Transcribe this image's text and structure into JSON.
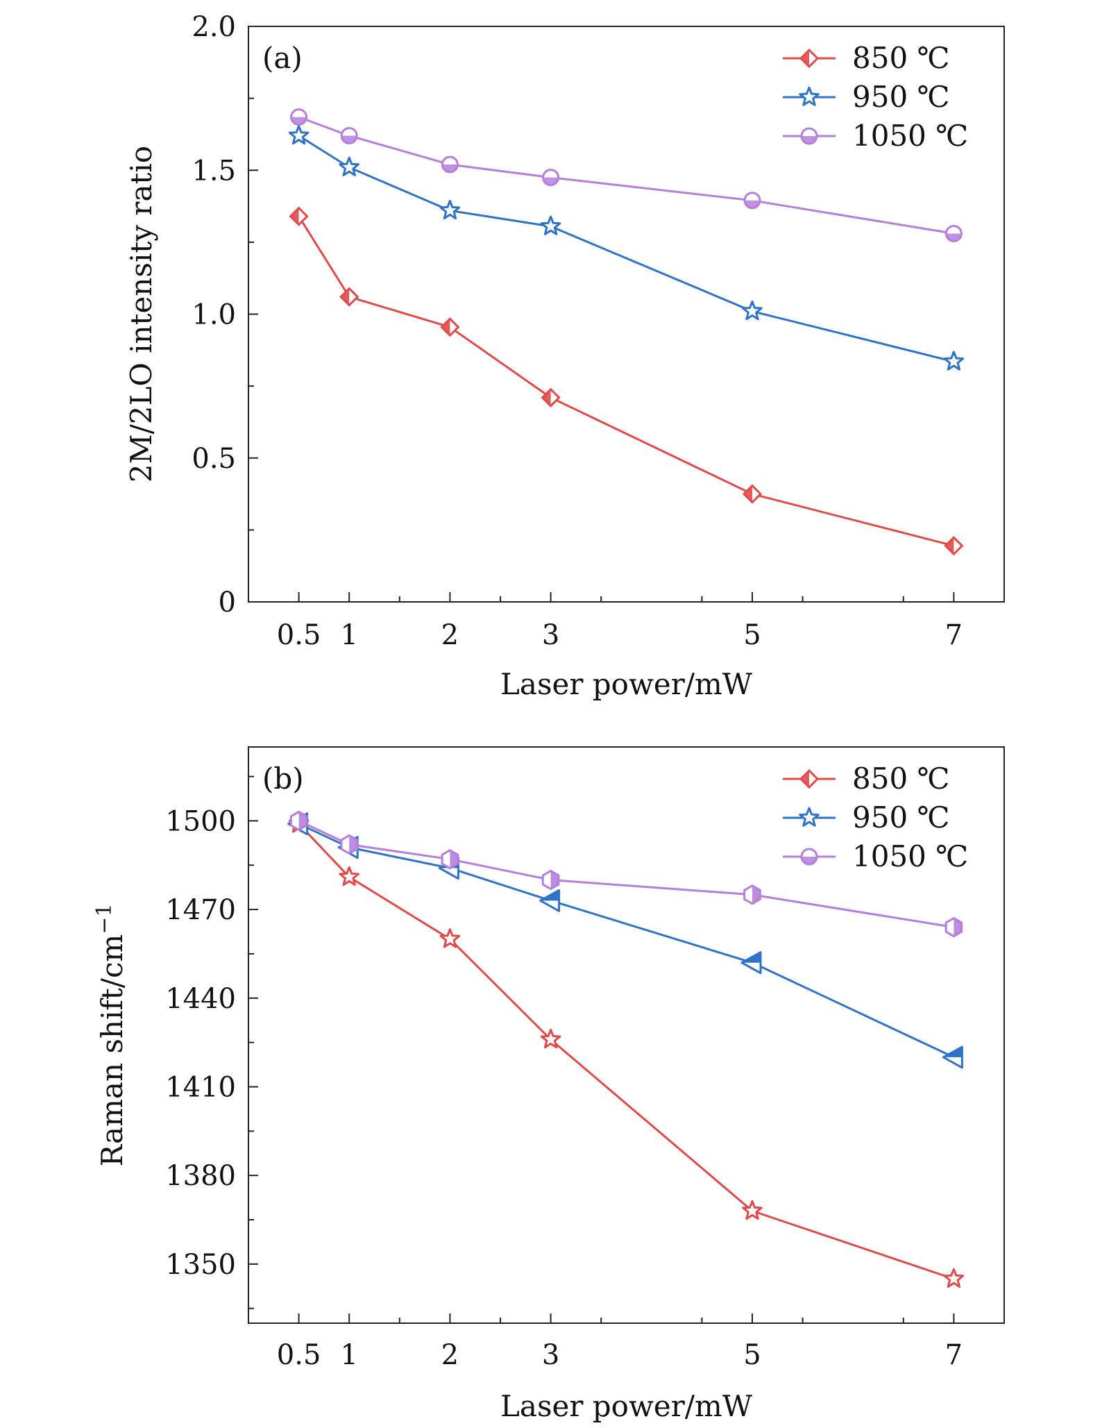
{
  "colors": {
    "s850": "#e04a4a",
    "s950": "#2f73c9",
    "s1050": "#b47fdc",
    "axis": "#222222"
  },
  "chart_data": [
    {
      "type": "line",
      "panel_label": "(a)",
      "xlabel": "Laser power/mW",
      "ylabel": "2M/2LO intensity ratio",
      "x": [
        0.5,
        1,
        2,
        3,
        5,
        7
      ],
      "xticks": [
        0.5,
        1,
        2,
        3,
        5,
        7
      ],
      "xtick_labels": [
        "0.5",
        "1",
        "2",
        "3",
        "5",
        "7"
      ],
      "xlim": [
        -0.0,
        7.5
      ],
      "ylim": [
        0,
        2.0
      ],
      "yticks": [
        0,
        0.5,
        1.0,
        1.5,
        2.0
      ],
      "ytick_labels": [
        "0",
        "0.5",
        "1.0",
        "1.5",
        "2.0"
      ],
      "legend_position": "top-right",
      "series": [
        {
          "name": "850 ℃",
          "color_key": "s850",
          "marker": "diamond-open",
          "values": [
            1.34,
            1.06,
            0.955,
            0.71,
            0.375,
            0.195
          ]
        },
        {
          "name": "950 ℃",
          "color_key": "s950",
          "marker": "star-open",
          "values": [
            1.62,
            1.51,
            1.36,
            1.305,
            1.01,
            0.835
          ]
        },
        {
          "name": "1050 ℃",
          "color_key": "s1050",
          "marker": "circle-half",
          "values": [
            1.685,
            1.62,
            1.52,
            1.475,
            1.395,
            1.28
          ]
        }
      ]
    },
    {
      "type": "line",
      "panel_label": "(b)",
      "xlabel": "Laser power/mW",
      "ylabel": "Raman shift/cm",
      "ylabel_sup": "−1",
      "x": [
        0.5,
        1,
        2,
        3,
        5,
        7
      ],
      "xticks": [
        0.5,
        1,
        2,
        3,
        5,
        7
      ],
      "xtick_labels": [
        "0.5",
        "1",
        "2",
        "3",
        "5",
        "7"
      ],
      "xlim": [
        -0.0,
        7.5
      ],
      "ylim": [
        1330,
        1525
      ],
      "yticks": [
        1350,
        1380,
        1410,
        1440,
        1470,
        1500
      ],
      "ytick_labels": [
        "1350",
        "1380",
        "1410",
        "1440",
        "1470",
        "1500"
      ],
      "legend_position": "top-right",
      "series": [
        {
          "name": "850 ℃",
          "color_key": "s850",
          "marker": "star-open",
          "legend_marker": "diamond-open",
          "values": [
            1499,
            1481,
            1460,
            1426,
            1368,
            1345
          ]
        },
        {
          "name": "950 ℃",
          "color_key": "s950",
          "marker": "triangle-left-half",
          "legend_marker": "star-open",
          "values": [
            1499,
            1491,
            1484,
            1473,
            1452,
            1420
          ]
        },
        {
          "name": "1050 ℃",
          "color_key": "s1050",
          "marker": "hexagon-half",
          "legend_marker": "circle-half",
          "values": [
            1500,
            1492,
            1487,
            1480,
            1475,
            1464
          ]
        }
      ]
    }
  ]
}
